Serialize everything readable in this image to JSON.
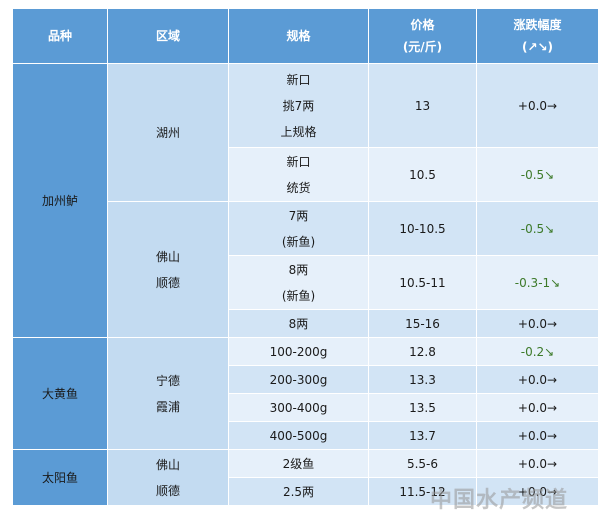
{
  "header": {
    "columns": [
      [
        "品种"
      ],
      [
        "区域"
      ],
      [
        "规格"
      ],
      [
        "价格",
        "(元/斤)"
      ],
      [
        "涨跌幅度",
        "(↗↘)"
      ]
    ]
  },
  "groups": [
    {
      "species": "加州鲈",
      "regions": [
        {
          "name": [
            "湖州"
          ],
          "items": [
            {
              "spec": [
                "新口",
                "挑7两",
                "上规格"
              ],
              "price": "13",
              "change": "+0.0→"
            },
            {
              "spec": [
                "新口",
                "统货"
              ],
              "price": "10.5",
              "change": "-0.5↘"
            }
          ]
        },
        {
          "name": [
            "佛山",
            "顺德"
          ],
          "items": [
            {
              "spec": [
                "7两",
                "(新鱼)"
              ],
              "price": "10-10.5",
              "change": "-0.5↘"
            },
            {
              "spec": [
                "8两",
                "(新鱼)"
              ],
              "price": "10.5-11",
              "change": "-0.3-1↘"
            },
            {
              "spec": [
                "8两"
              ],
              "price": "15-16",
              "change": "+0.0→"
            }
          ]
        }
      ]
    },
    {
      "species": "大黄鱼",
      "regions": [
        {
          "name": [
            "宁德",
            "霞浦"
          ],
          "items": [
            {
              "spec": [
                "100-200g"
              ],
              "price": "12.8",
              "change": "-0.2↘"
            },
            {
              "spec": [
                "200-300g"
              ],
              "price": "13.3",
              "change": "+0.0→"
            },
            {
              "spec": [
                "300-400g"
              ],
              "price": "13.5",
              "change": "+0.0→"
            },
            {
              "spec": [
                "400-500g"
              ],
              "price": "13.7",
              "change": "+0.0→"
            }
          ]
        }
      ]
    },
    {
      "species": "太阳鱼",
      "regions": [
        {
          "name": [
            "佛山",
            "顺德"
          ],
          "items": [
            {
              "spec": [
                "2级鱼"
              ],
              "price": "5.5-6",
              "change": "+0.0→"
            },
            {
              "spec": [
                "2.5两"
              ],
              "price": "11.5-12",
              "change": "+0.0→"
            }
          ]
        }
      ]
    }
  ],
  "watermark": "中国水产频道"
}
